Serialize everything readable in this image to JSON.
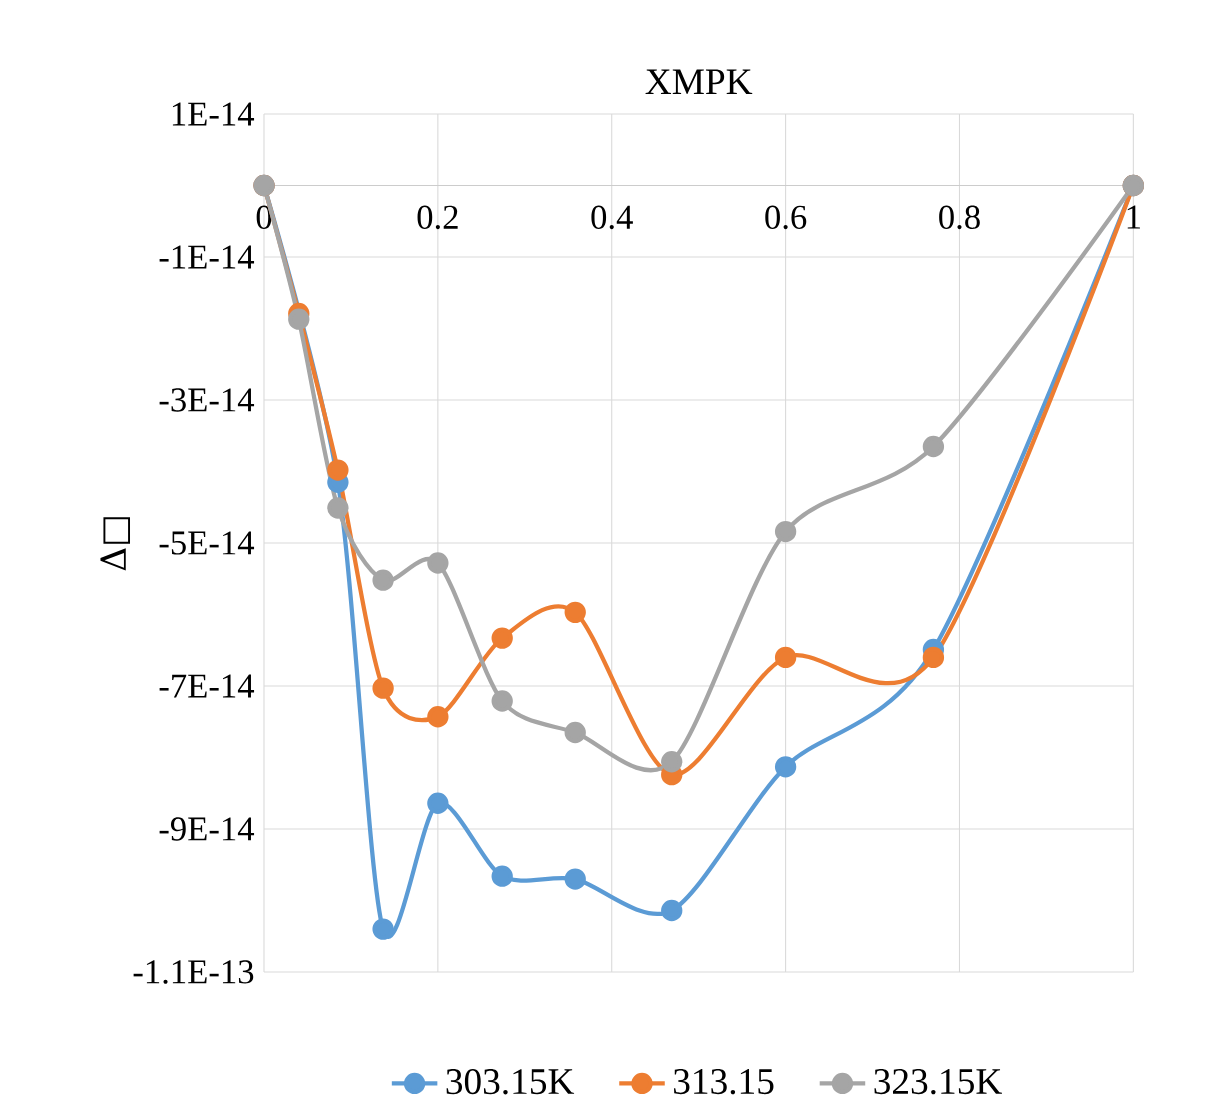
{
  "chart_data": {
    "type": "line",
    "title": "XMPK",
    "ylabel": "Δ□",
    "x": [
      0,
      0.04,
      0.085,
      0.137,
      0.2,
      0.274,
      0.358,
      0.469,
      0.6,
      0.77,
      1
    ],
    "series": [
      {
        "name": "303.15K",
        "color": "#5b9bd5",
        "x": [
          0,
          0.085,
          0.137,
          0.2,
          0.274,
          0.358,
          0.469,
          0.6,
          0.77,
          1
        ],
        "values": [
          0,
          -4.15e-14,
          -1.04e-13,
          -8.64e-14,
          -9.66e-14,
          -9.7e-14,
          -1.014e-13,
          -8.13e-14,
          -6.49e-14,
          0
        ]
      },
      {
        "name": "313.15",
        "color": "#ed7d31",
        "values": [
          0,
          -1.79e-14,
          -3.98e-14,
          -7.03e-14,
          -7.43e-14,
          -6.33e-14,
          -5.97e-14,
          -8.24e-14,
          -6.6e-14,
          -6.6e-14,
          0
        ]
      },
      {
        "name": "323.15K",
        "color": "#a5a5a5",
        "values": [
          0,
          -1.87e-14,
          -4.51e-14,
          -5.52e-14,
          -5.28e-14,
          -7.21e-14,
          -7.65e-14,
          -8.06e-14,
          -4.84e-14,
          -3.65e-14,
          0
        ]
      }
    ],
    "xlim": [
      0,
      1
    ],
    "xticks": [
      0,
      0.2,
      0.4,
      0.6,
      0.8,
      1
    ],
    "ylim": [
      -1.1e-13,
      1e-14
    ],
    "yticks": [
      {
        "value": 1e-14,
        "label": "1E-14"
      },
      {
        "value": -1e-14,
        "label": "-1E-14"
      },
      {
        "value": -3e-14,
        "label": "-3E-14"
      },
      {
        "value": -5e-14,
        "label": "-5E-14"
      },
      {
        "value": -7e-14,
        "label": "-7E-14"
      },
      {
        "value": -9e-14,
        "label": "-9E-14"
      },
      {
        "value": -1.1e-13,
        "label": "-1.1E-13"
      }
    ],
    "grid": true,
    "legend": "bottom",
    "marker": "circle",
    "line_style": "solid"
  }
}
